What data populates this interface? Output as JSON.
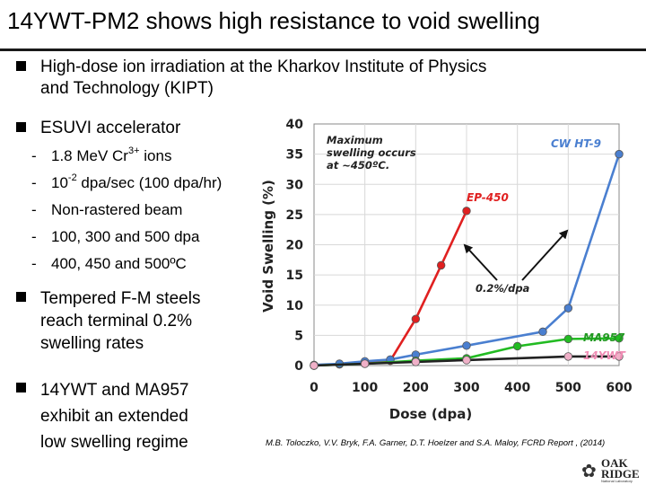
{
  "title": "14YWT-PM2 shows high resistance to void swelling",
  "bullets": {
    "b1_line1": "High-dose ion irradiation at the Kharkov Institute of Physics",
    "b1_line2": "and Technology (KIPT)",
    "b2": "ESUVI accelerator",
    "sub1_pre": "1.8 MeV Cr",
    "sub1_sup": "3+",
    "sub1_post": " ions",
    "sub2_pre": "10",
    "sub2_sup": "-2",
    "sub2_post": " dpa/sec (100 dpa/hr)",
    "sub3": "Non-rastered beam",
    "sub4": "100, 300 and 500 dpa",
    "sub5": "400, 450 and 500ºC",
    "dash": "-",
    "b3_line1": "Tempered F-M steels",
    "b3_line2": "reach terminal 0.2%",
    "b3_line3": "swelling rates",
    "b4_line1": "14YWT and MA957",
    "b4_line2": "exhibit an extended",
    "b4_line3": "low swelling regime"
  },
  "citation": "M.B. Toloczko, V.V. Bryk, F.A. Garner, D.T. Hoelzer and S.A. Maloy, FCRD Report , (2014)",
  "logo": {
    "line1": "OAK",
    "line2": "RIDGE",
    "line3": "National Laboratory"
  },
  "chart_data": {
    "type": "line",
    "xlabel": "Dose (dpa)",
    "ylabel": "Void Swelling (%)",
    "xlim": [
      0,
      600
    ],
    "ylim": [
      0,
      40
    ],
    "xticks": [
      0,
      100,
      200,
      300,
      400,
      500,
      600
    ],
    "yticks": [
      0,
      5,
      10,
      15,
      20,
      25,
      30,
      35,
      40
    ],
    "annotation_max_line1": "Maximum",
    "annotation_max_line2": "swelling occurs",
    "annotation_max_line3": "at ~450ºC.",
    "annotation_rate": "0.2%/dpa",
    "series": [
      {
        "name": "CW HT-9",
        "color": "#4a7fd0",
        "x": [
          0,
          50,
          100,
          150,
          200,
          300,
          450,
          500,
          600
        ],
        "y": [
          0.1,
          0.3,
          0.7,
          1.0,
          1.8,
          3.3,
          5.6,
          9.5,
          35.0
        ]
      },
      {
        "name": "EP-450",
        "color": "#e02020",
        "x": [
          0,
          50,
          100,
          150,
          200,
          250,
          300
        ],
        "y": [
          0.0,
          0.2,
          0.5,
          0.8,
          7.7,
          16.6,
          25.6
        ]
      },
      {
        "name": "MA957",
        "color": "#22bb22",
        "x": [
          0,
          100,
          200,
          300,
          400,
          500,
          600
        ],
        "y": [
          0.0,
          0.3,
          0.8,
          1.2,
          3.2,
          4.4,
          4.5
        ]
      },
      {
        "name": "14YWT",
        "color": "#222222",
        "marker_color": "#f0b0c8",
        "x": [
          0,
          100,
          200,
          300,
          500,
          600
        ],
        "y": [
          0.0,
          0.3,
          0.6,
          0.9,
          1.5,
          1.5
        ]
      }
    ]
  }
}
